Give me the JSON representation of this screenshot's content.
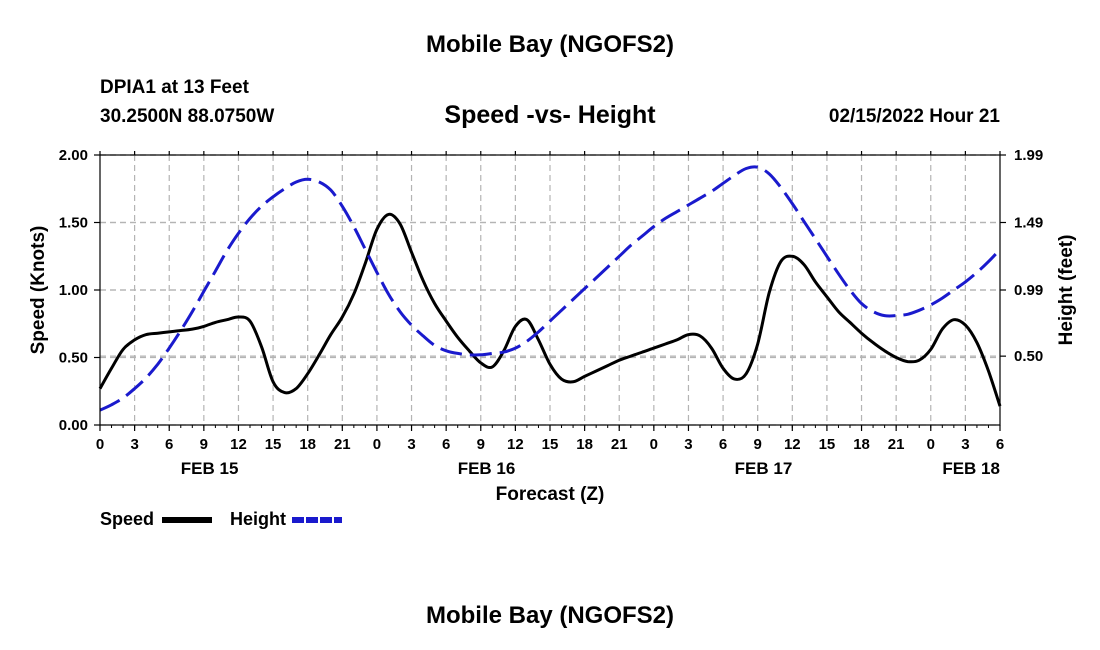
{
  "page": {
    "title_top": "Mobile Bay (NGOFS2)",
    "title_bottom": "Mobile Bay (NGOFS2)",
    "station": "DPIA1 at 13 Feet",
    "coords": "30.2500N  88.0750W",
    "subtitle": "Speed -vs- Height",
    "datetime": "02/15/2022 Hour 21"
  },
  "legend": {
    "speed_label": "Speed",
    "height_label": "Height"
  },
  "colors": {
    "speed": "#000000",
    "height": "#1a1acd",
    "grid": "#b4b4b4"
  },
  "chart_data": {
    "type": "line",
    "xlabel": "Forecast (Z)",
    "ylabel_left": "Speed (Knots)",
    "ylabel_right": "Height (feet)",
    "x_range_hours": [
      0,
      78
    ],
    "ylim_left": [
      0,
      2.0
    ],
    "ylim_right": [
      -0.01,
      1.99
    ],
    "left_ticks": [
      "0.00",
      "0.50",
      "1.00",
      "1.50",
      "2.00"
    ],
    "left_tick_values": [
      0,
      0.5,
      1.0,
      1.5,
      2.0
    ],
    "right_ticks": [
      "0.50",
      "0.99",
      "1.49",
      "1.99"
    ],
    "right_tick_values": [
      0.5,
      0.99,
      1.49,
      1.99
    ],
    "x_tick_labels": [
      "0",
      "3",
      "6",
      "9",
      "12",
      "15",
      "18",
      "21",
      "0",
      "3",
      "6",
      "9",
      "12",
      "15",
      "18",
      "21",
      "0",
      "3",
      "6",
      "9",
      "12",
      "15",
      "18",
      "21",
      "0",
      "3",
      "6"
    ],
    "x_tick_hours": [
      0,
      3,
      6,
      9,
      12,
      15,
      18,
      21,
      24,
      27,
      30,
      33,
      36,
      39,
      42,
      45,
      48,
      51,
      54,
      57,
      60,
      63,
      66,
      69,
      72,
      75,
      78
    ],
    "day_labels": [
      {
        "label": "FEB 15",
        "hour": 9.5
      },
      {
        "label": "FEB 16",
        "hour": 33.5
      },
      {
        "label": "FEB 17",
        "hour": 57.5
      },
      {
        "label": "FEB 18",
        "hour": 75.5
      }
    ],
    "grid": true,
    "series": [
      {
        "name": "Speed",
        "axis": "left",
        "style": "solid",
        "x": [
          0,
          1,
          2,
          3,
          4,
          5,
          6,
          7,
          8,
          9,
          10,
          11,
          12,
          13,
          14,
          15,
          16,
          17,
          18,
          19,
          20,
          21,
          22,
          23,
          24,
          25,
          26,
          27,
          28,
          29,
          30,
          31,
          32,
          33,
          34,
          35,
          36,
          37,
          38,
          39,
          40,
          41,
          42,
          43,
          44,
          45,
          46,
          47,
          48,
          49,
          50,
          51,
          52,
          53,
          54,
          55,
          56,
          57,
          58,
          59,
          60,
          61,
          62,
          63,
          64,
          65,
          66,
          67,
          68,
          69,
          70,
          71,
          72,
          73,
          74,
          75,
          76,
          77,
          78
        ],
        "values": [
          0.27,
          0.42,
          0.56,
          0.63,
          0.67,
          0.68,
          0.69,
          0.7,
          0.71,
          0.73,
          0.76,
          0.78,
          0.8,
          0.77,
          0.58,
          0.32,
          0.24,
          0.27,
          0.38,
          0.52,
          0.67,
          0.8,
          0.97,
          1.2,
          1.45,
          1.56,
          1.49,
          1.28,
          1.07,
          0.9,
          0.77,
          0.65,
          0.55,
          0.46,
          0.43,
          0.55,
          0.73,
          0.78,
          0.63,
          0.45,
          0.34,
          0.32,
          0.36,
          0.4,
          0.44,
          0.48,
          0.51,
          0.54,
          0.57,
          0.6,
          0.63,
          0.67,
          0.66,
          0.57,
          0.42,
          0.34,
          0.38,
          0.6,
          0.98,
          1.21,
          1.25,
          1.19,
          1.06,
          0.95,
          0.84,
          0.76,
          0.68,
          0.61,
          0.55,
          0.5,
          0.47,
          0.48,
          0.56,
          0.71,
          0.78,
          0.74,
          0.61,
          0.4,
          0.14
        ]
      },
      {
        "name": "Height",
        "axis": "right",
        "style": "dashed",
        "x": [
          0,
          1,
          2,
          3,
          4,
          5,
          6,
          7,
          8,
          9,
          10,
          11,
          12,
          13,
          14,
          15,
          16,
          17,
          18,
          19,
          20,
          21,
          22,
          23,
          24,
          25,
          26,
          27,
          28,
          29,
          30,
          31,
          32,
          33,
          34,
          35,
          36,
          37,
          38,
          39,
          40,
          41,
          42,
          43,
          44,
          45,
          46,
          47,
          48,
          49,
          50,
          51,
          52,
          53,
          54,
          55,
          56,
          57,
          58,
          59,
          60,
          61,
          62,
          63,
          64,
          65,
          66,
          67,
          68,
          69,
          70,
          71,
          72,
          73,
          74,
          75,
          76,
          77,
          78
        ],
        "values": [
          0.1,
          0.14,
          0.19,
          0.26,
          0.34,
          0.44,
          0.56,
          0.69,
          0.83,
          0.98,
          1.13,
          1.28,
          1.41,
          1.52,
          1.61,
          1.68,
          1.74,
          1.79,
          1.81,
          1.79,
          1.73,
          1.61,
          1.46,
          1.29,
          1.12,
          0.96,
          0.83,
          0.73,
          0.65,
          0.58,
          0.54,
          0.52,
          0.51,
          0.51,
          0.52,
          0.53,
          0.56,
          0.61,
          0.68,
          0.76,
          0.84,
          0.92,
          1.0,
          1.08,
          1.16,
          1.24,
          1.32,
          1.39,
          1.46,
          1.52,
          1.57,
          1.62,
          1.67,
          1.72,
          1.78,
          1.84,
          1.89,
          1.9,
          1.85,
          1.75,
          1.63,
          1.5,
          1.37,
          1.24,
          1.11,
          0.99,
          0.89,
          0.83,
          0.8,
          0.8,
          0.81,
          0.84,
          0.88,
          0.93,
          0.99,
          1.05,
          1.12,
          1.2,
          1.29
        ]
      }
    ]
  }
}
